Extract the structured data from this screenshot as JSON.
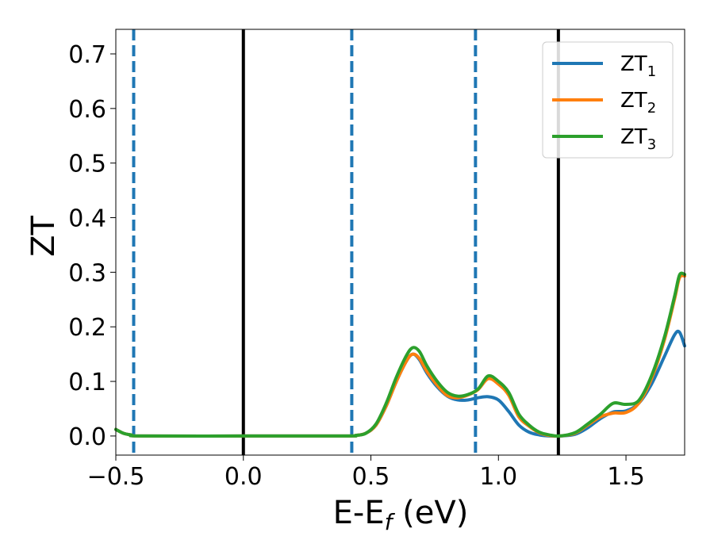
{
  "chart_data": {
    "type": "line",
    "xlabel": {
      "base": "E-E",
      "sub": "f",
      "rest": " (eV)"
    },
    "ylabel": "ZT",
    "xlim": [
      -0.5,
      1.73
    ],
    "ylim": [
      -0.035,
      0.745
    ],
    "xticks": [
      {
        "value": -0.5,
        "label": "−0.5"
      },
      {
        "value": 0.0,
        "label": "0.0"
      },
      {
        "value": 0.5,
        "label": "0.5"
      },
      {
        "value": 1.0,
        "label": "1.0"
      },
      {
        "value": 1.5,
        "label": "1.5"
      }
    ],
    "yticks": [
      {
        "value": 0.0,
        "label": "0.0"
      },
      {
        "value": 0.1,
        "label": "0.1"
      },
      {
        "value": 0.2,
        "label": "0.2"
      },
      {
        "value": 0.3,
        "label": "0.3"
      },
      {
        "value": 0.4,
        "label": "0.4"
      },
      {
        "value": 0.5,
        "label": "0.5"
      },
      {
        "value": 0.6,
        "label": "0.6"
      },
      {
        "value": 0.7,
        "label": "0.7"
      }
    ],
    "grid": false,
    "legend": "top-right",
    "vlines": [
      {
        "x": 0.0,
        "style": "solid",
        "color": "#000000"
      },
      {
        "x": 1.235,
        "style": "solid",
        "color": "#000000"
      },
      {
        "x": -0.43,
        "style": "dashed",
        "color": "#1f77b4"
      },
      {
        "x": 0.425,
        "style": "dashed",
        "color": "#1f77b4"
      },
      {
        "x": 0.91,
        "style": "dashed",
        "color": "#1f77b4"
      }
    ],
    "series": [
      {
        "name": {
          "base": "ZT",
          "sub": "1"
        },
        "color": "#1f77b4",
        "points": [
          [
            -0.5,
            0.012
          ],
          [
            -0.47,
            0.005
          ],
          [
            -0.44,
            0.002
          ],
          [
            -0.4,
            0.0
          ],
          [
            0.0,
            0.0
          ],
          [
            0.4,
            0.0
          ],
          [
            0.44,
            0.001
          ],
          [
            0.48,
            0.005
          ],
          [
            0.52,
            0.02
          ],
          [
            0.56,
            0.055
          ],
          [
            0.6,
            0.1
          ],
          [
            0.64,
            0.138
          ],
          [
            0.665,
            0.15
          ],
          [
            0.69,
            0.14
          ],
          [
            0.72,
            0.115
          ],
          [
            0.76,
            0.09
          ],
          [
            0.8,
            0.073
          ],
          [
            0.84,
            0.066
          ],
          [
            0.88,
            0.066
          ],
          [
            0.92,
            0.07
          ],
          [
            0.96,
            0.072
          ],
          [
            1.0,
            0.066
          ],
          [
            1.04,
            0.045
          ],
          [
            1.08,
            0.02
          ],
          [
            1.12,
            0.007
          ],
          [
            1.16,
            0.002
          ],
          [
            1.2,
            0.0
          ],
          [
            1.24,
            0.0
          ],
          [
            1.3,
            0.003
          ],
          [
            1.35,
            0.015
          ],
          [
            1.4,
            0.032
          ],
          [
            1.45,
            0.044
          ],
          [
            1.5,
            0.046
          ],
          [
            1.55,
            0.06
          ],
          [
            1.6,
            0.095
          ],
          [
            1.65,
            0.145
          ],
          [
            1.69,
            0.185
          ],
          [
            1.71,
            0.19
          ],
          [
            1.73,
            0.165
          ]
        ]
      },
      {
        "name": {
          "base": "ZT",
          "sub": "2"
        },
        "color": "#ff7f0e",
        "points": [
          [
            -0.5,
            0.012
          ],
          [
            -0.47,
            0.005
          ],
          [
            -0.44,
            0.002
          ],
          [
            -0.4,
            0.0
          ],
          [
            0.0,
            0.0
          ],
          [
            0.4,
            0.0
          ],
          [
            0.44,
            0.001
          ],
          [
            0.48,
            0.005
          ],
          [
            0.52,
            0.02
          ],
          [
            0.56,
            0.055
          ],
          [
            0.6,
            0.1
          ],
          [
            0.64,
            0.138
          ],
          [
            0.665,
            0.15
          ],
          [
            0.69,
            0.142
          ],
          [
            0.72,
            0.118
          ],
          [
            0.76,
            0.093
          ],
          [
            0.8,
            0.074
          ],
          [
            0.84,
            0.07
          ],
          [
            0.88,
            0.075
          ],
          [
            0.92,
            0.085
          ],
          [
            0.96,
            0.105
          ],
          [
            1.0,
            0.095
          ],
          [
            1.04,
            0.075
          ],
          [
            1.08,
            0.035
          ],
          [
            1.12,
            0.018
          ],
          [
            1.16,
            0.006
          ],
          [
            1.2,
            0.001
          ],
          [
            1.24,
            0.0
          ],
          [
            1.3,
            0.005
          ],
          [
            1.35,
            0.02
          ],
          [
            1.4,
            0.035
          ],
          [
            1.45,
            0.042
          ],
          [
            1.5,
            0.043
          ],
          [
            1.55,
            0.06
          ],
          [
            1.6,
            0.105
          ],
          [
            1.65,
            0.175
          ],
          [
            1.69,
            0.25
          ],
          [
            1.71,
            0.29
          ],
          [
            1.73,
            0.293
          ]
        ]
      },
      {
        "name": {
          "base": "ZT",
          "sub": "3"
        },
        "color": "#2ca02c",
        "points": [
          [
            -0.5,
            0.012
          ],
          [
            -0.47,
            0.005
          ],
          [
            -0.44,
            0.002
          ],
          [
            -0.4,
            0.0
          ],
          [
            0.0,
            0.0
          ],
          [
            0.4,
            0.0
          ],
          [
            0.44,
            0.001
          ],
          [
            0.48,
            0.005
          ],
          [
            0.52,
            0.022
          ],
          [
            0.56,
            0.06
          ],
          [
            0.6,
            0.108
          ],
          [
            0.64,
            0.148
          ],
          [
            0.665,
            0.162
          ],
          [
            0.69,
            0.155
          ],
          [
            0.72,
            0.128
          ],
          [
            0.76,
            0.1
          ],
          [
            0.8,
            0.08
          ],
          [
            0.84,
            0.073
          ],
          [
            0.88,
            0.076
          ],
          [
            0.92,
            0.086
          ],
          [
            0.96,
            0.11
          ],
          [
            1.0,
            0.1
          ],
          [
            1.04,
            0.08
          ],
          [
            1.08,
            0.04
          ],
          [
            1.12,
            0.02
          ],
          [
            1.16,
            0.007
          ],
          [
            1.2,
            0.002
          ],
          [
            1.24,
            0.0
          ],
          [
            1.3,
            0.006
          ],
          [
            1.35,
            0.022
          ],
          [
            1.4,
            0.04
          ],
          [
            1.45,
            0.06
          ],
          [
            1.5,
            0.058
          ],
          [
            1.55,
            0.065
          ],
          [
            1.6,
            0.11
          ],
          [
            1.65,
            0.18
          ],
          [
            1.69,
            0.255
          ],
          [
            1.71,
            0.295
          ],
          [
            1.73,
            0.296
          ]
        ]
      }
    ]
  }
}
